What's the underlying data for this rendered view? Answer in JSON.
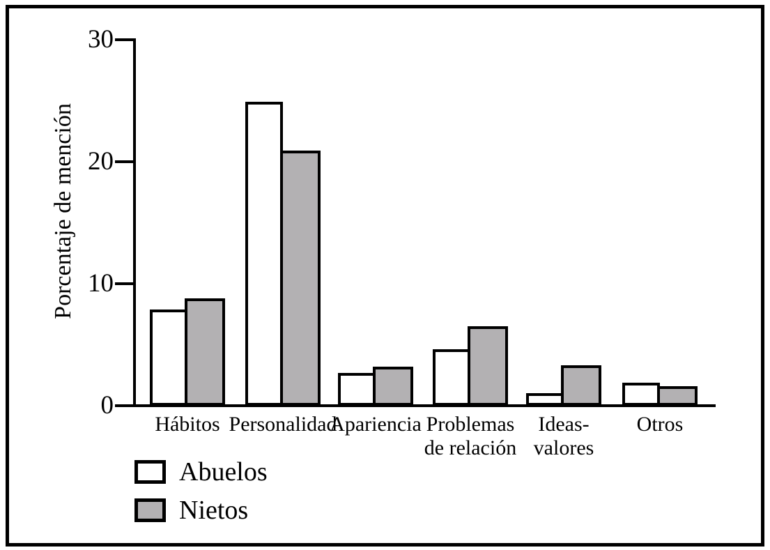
{
  "figure": {
    "y_axis_title": "Porcentaje de mención"
  },
  "colors": {
    "abuelos_fill": "#ffffff",
    "nietos_fill": "#b3b1b3",
    "line": "#000000"
  },
  "legend": {
    "items": [
      {
        "label": "Abuelos",
        "color": "#ffffff"
      },
      {
        "label": "Nietos",
        "color": "#b3b1b3"
      }
    ]
  },
  "chart_data": {
    "type": "bar",
    "title": "",
    "xlabel": "",
    "ylabel": "Porcentaje de mención",
    "categories": [
      "Hábitos",
      "Personalidad",
      "Apariencia",
      "Problemas\nde relación",
      "Ideas-\nvalores",
      "Otros"
    ],
    "series": [
      {
        "name": "Abuelos",
        "values": [
          7.9,
          24.9,
          2.7,
          4.6,
          1.0,
          1.9
        ]
      },
      {
        "name": "Nietos",
        "values": [
          8.8,
          20.9,
          3.2,
          6.5,
          3.3,
          1.6
        ]
      }
    ],
    "ylim": [
      0,
      30
    ],
    "yticks": [
      0,
      10,
      20,
      30
    ],
    "grid": false,
    "legend_position": "bottom-left"
  }
}
